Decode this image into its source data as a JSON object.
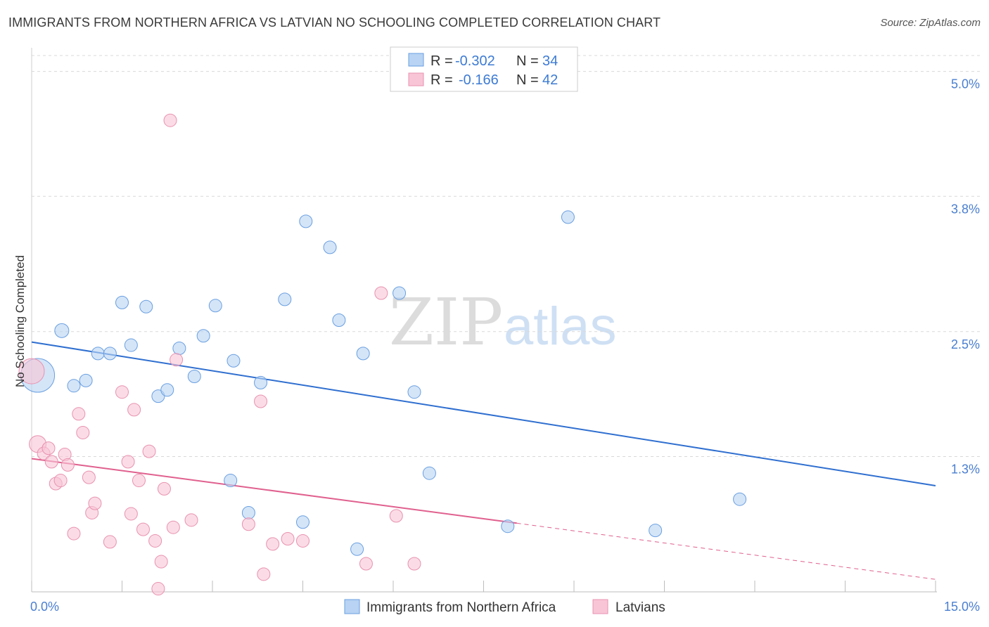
{
  "title": "IMMIGRANTS FROM NORTHERN AFRICA VS LATVIAN NO SCHOOLING COMPLETED CORRELATION CHART",
  "source": "Source: ZipAtlas.com",
  "watermark": {
    "zip": "ZIP",
    "atlas": "atlas"
  },
  "colors": {
    "blue_fill": "#b8d3f3",
    "blue_stroke": "#6a9fe0",
    "blue_line": "#2f6fd0",
    "pink_fill": "#f8c5d6",
    "pink_stroke": "#e892b0",
    "pink_line": "#e0608e",
    "grid": "#d9d9d9",
    "label_blue": "#4a7fd0"
  },
  "legend": {
    "rows": [
      {
        "r_label": "R = ",
        "r_value": "-0.302",
        "n_label": "N = ",
        "n_value": "34"
      },
      {
        "r_label": "R = ",
        "r_value": "-0.166",
        "n_label": "N = ",
        "n_value": "42"
      }
    ]
  },
  "bottom_legend": [
    "Immigrants from Northern Africa",
    "Latvians"
  ],
  "chart_data": {
    "type": "scatter",
    "title": "IMMIGRANTS FROM NORTHERN AFRICA VS LATVIAN NO SCHOOLING COMPLETED CORRELATION CHART",
    "xlabel": "",
    "ylabel": "No Schooling Completed",
    "xlim": [
      0,
      15
    ],
    "ylim": [
      0,
      5.2
    ],
    "x_tick_labels": [
      "0.0%",
      "15.0%"
    ],
    "y_ticks": [
      1.3,
      2.5,
      3.8,
      5.0
    ],
    "y_tick_labels": [
      "1.3%",
      "2.5%",
      "3.8%",
      "5.0%"
    ],
    "grid": true,
    "legend_position": "top-center",
    "series": [
      {
        "name": "Immigrants from Northern Africa",
        "r": -0.302,
        "n": 34,
        "trend": [
          [
            0,
            2.4
          ],
          [
            15,
            1.02
          ]
        ],
        "points": [
          [
            0.1,
            2.08,
            24
          ],
          [
            0.5,
            2.51,
            10
          ],
          [
            0.7,
            1.98,
            9
          ],
          [
            0.9,
            2.03,
            9
          ],
          [
            1.1,
            2.29,
            9
          ],
          [
            1.3,
            2.29,
            9
          ],
          [
            1.5,
            2.78,
            9
          ],
          [
            1.65,
            2.37,
            9
          ],
          [
            1.9,
            2.74,
            9
          ],
          [
            2.1,
            1.88,
            9
          ],
          [
            2.25,
            1.94,
            9
          ],
          [
            2.45,
            2.34,
            9
          ],
          [
            2.7,
            2.07,
            9
          ],
          [
            2.85,
            2.46,
            9
          ],
          [
            3.05,
            2.75,
            9
          ],
          [
            3.3,
            1.07,
            9
          ],
          [
            3.35,
            2.22,
            9
          ],
          [
            3.6,
            0.76,
            9
          ],
          [
            3.8,
            2.01,
            9
          ],
          [
            4.2,
            2.81,
            9
          ],
          [
            4.5,
            0.67,
            9
          ],
          [
            4.55,
            3.56,
            9
          ],
          [
            4.95,
            3.31,
            9
          ],
          [
            5.1,
            2.61,
            9
          ],
          [
            5.4,
            0.41,
            9
          ],
          [
            5.5,
            2.29,
            9
          ],
          [
            6.1,
            2.87,
            9
          ],
          [
            6.35,
            1.92,
            9
          ],
          [
            6.6,
            1.14,
            9
          ],
          [
            7.9,
            0.63,
            9
          ],
          [
            8.9,
            3.6,
            9
          ],
          [
            10.35,
            0.59,
            9
          ],
          [
            11.75,
            0.89,
            9
          ]
        ]
      },
      {
        "name": "Latvians",
        "r": -0.166,
        "n": 42,
        "trend": [
          [
            0,
            1.28
          ],
          [
            8.05,
            0.66
          ]
        ],
        "trend_extension": [
          [
            8.05,
            0.66
          ],
          [
            15,
            0.12
          ]
        ],
        "points": [
          [
            0.0,
            2.12,
            18
          ],
          [
            0.1,
            1.42,
            12
          ],
          [
            0.2,
            1.33,
            9
          ],
          [
            0.28,
            1.38,
            9
          ],
          [
            0.33,
            1.25,
            9
          ],
          [
            0.4,
            1.04,
            9
          ],
          [
            0.48,
            1.07,
            9
          ],
          [
            0.55,
            1.32,
            9
          ],
          [
            0.6,
            1.22,
            9
          ],
          [
            0.7,
            0.56,
            9
          ],
          [
            0.78,
            1.71,
            9
          ],
          [
            0.85,
            1.53,
            9
          ],
          [
            0.95,
            1.1,
            9
          ],
          [
            1.0,
            0.76,
            9
          ],
          [
            1.05,
            0.85,
            9
          ],
          [
            1.3,
            0.48,
            9
          ],
          [
            1.5,
            1.92,
            9
          ],
          [
            1.6,
            1.25,
            9
          ],
          [
            1.65,
            0.75,
            9
          ],
          [
            1.7,
            1.75,
            9
          ],
          [
            1.78,
            1.07,
            9
          ],
          [
            1.85,
            0.6,
            9
          ],
          [
            1.95,
            1.35,
            9
          ],
          [
            2.05,
            0.49,
            9
          ],
          [
            2.1,
            0.03,
            9
          ],
          [
            2.15,
            0.29,
            9
          ],
          [
            2.2,
            0.99,
            9
          ],
          [
            2.3,
            4.53,
            9
          ],
          [
            2.35,
            0.62,
            9
          ],
          [
            2.4,
            2.23,
            9
          ],
          [
            2.65,
            0.69,
            9
          ],
          [
            3.6,
            0.65,
            9
          ],
          [
            3.8,
            1.83,
            9
          ],
          [
            3.85,
            0.17,
            9
          ],
          [
            4.0,
            0.46,
            9
          ],
          [
            4.25,
            0.51,
            9
          ],
          [
            4.5,
            0.49,
            9
          ],
          [
            5.55,
            0.27,
            9
          ],
          [
            5.8,
            2.87,
            9
          ],
          [
            6.05,
            0.73,
            9
          ],
          [
            6.35,
            0.27,
            9
          ]
        ]
      }
    ]
  }
}
